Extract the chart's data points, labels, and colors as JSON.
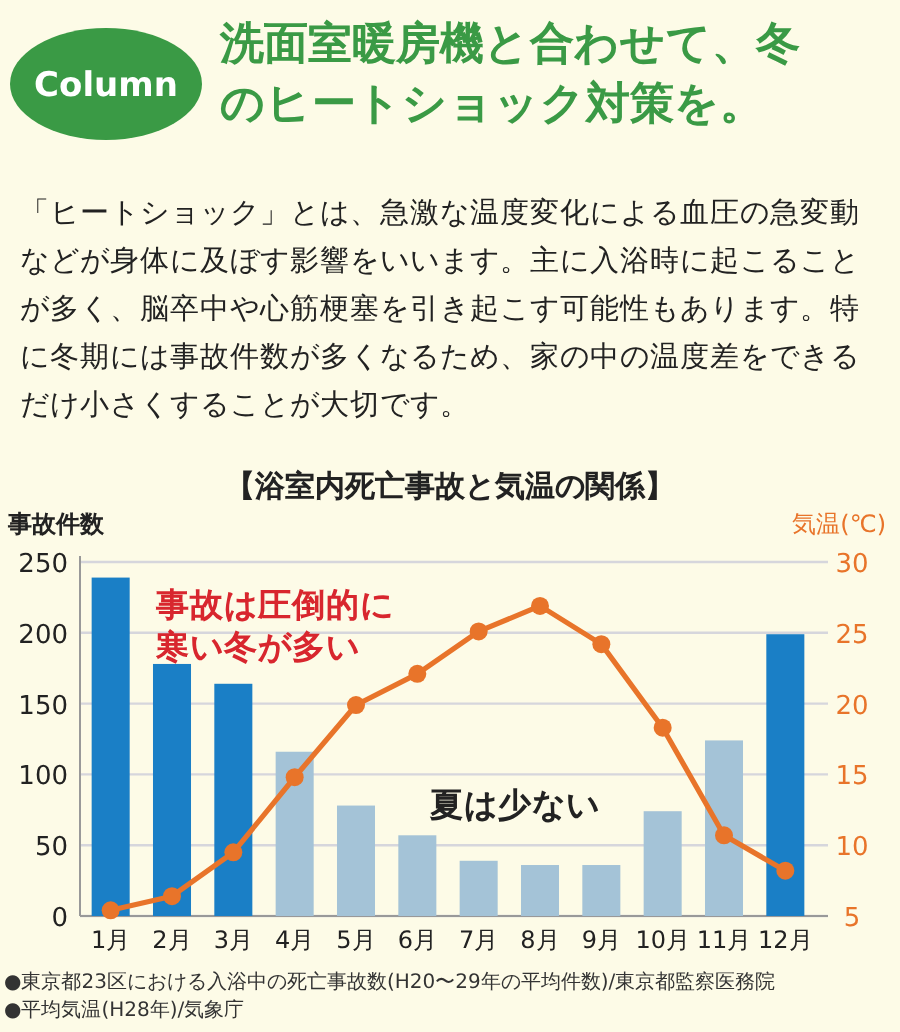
{
  "chart_data": {
    "type": "bar",
    "title": "【浴室内死亡事故と気温の関係】",
    "ylabel": "事故件数",
    "y2label": "気温(℃)",
    "categories": [
      "1月",
      "2月",
      "3月",
      "4月",
      "5月",
      "6月",
      "7月",
      "8月",
      "9月",
      "10月",
      "11月",
      "12月"
    ],
    "series": [
      {
        "colors": [
          "#1a7fc6",
          "#1a7fc6",
          "#1a7fc6",
          "#a4c3d7",
          "#a4c3d7",
          "#a4c3d7",
          "#a4c3d7",
          "#a4c3d7",
          "#a4c3d7",
          "#a4c3d7",
          "#a4c3d7",
          "#1a7fc6"
        ],
        "values": [
          239,
          178,
          164,
          116,
          78,
          57,
          39,
          36,
          36,
          74,
          124,
          199
        ]
      },
      {
        "type": "line",
        "axis": "y2",
        "color": "#e8742a",
        "values": [
          5.4,
          6.4,
          9.5,
          14.8,
          19.9,
          22.1,
          25.1,
          26.9,
          24.2,
          18.3,
          10.7,
          8.2
        ]
      }
    ],
    "ylim": [
      0,
      250
    ],
    "yticks": [
      0,
      50,
      100,
      150,
      200,
      250
    ],
    "y2lim": [
      5,
      30
    ],
    "y2ticks": [
      5,
      10,
      15,
      20,
      25,
      30
    ],
    "grid": "y",
    "marker": "circle",
    "annotations": [
      "Column",
      "洗面室暖房機と合わせて、冬のヒートショック対策を。",
      "「ヒートショック」とは、急激な温度変化による血圧の急変動などが身体に及ぼす影響をいいます。主に入浴時に起こることが多く、脳卒中や心筋梗塞を引き起こす可能性もあります。特に冬期には事故件数が多くなるため、家の中の温度差をできるだけ小さくすることが大切です。",
      "事故は圧倒的に寒い冬が多い",
      "夏は少ない",
      "●東京都23区における入浴中の死亡事故数(H20〜29年の平均件数)/東京都監察医務院",
      "●平均気温(H28年)/気象庁"
    ]
  }
}
